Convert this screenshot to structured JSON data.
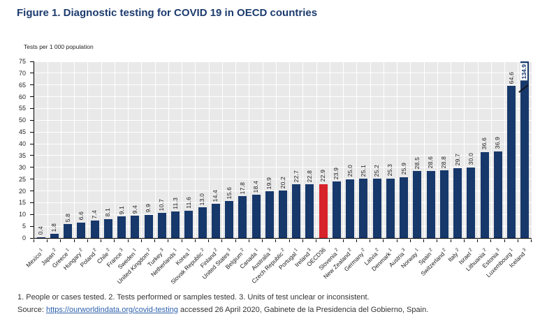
{
  "figure": {
    "title": "Figure 1. Diagnostic testing for COVID 19 in OECD countries",
    "footnote": "1. People or cases tested. 2. Tests performed or samples tested. 3. Units of test unclear or inconsistent.",
    "source": {
      "prefix": "Source: ",
      "link_text": "https://ourworldindata.org/covid-testing",
      "suffix": " accessed 26 April 2020, Gabinete de la Presidencia del Gobierno, Spain."
    }
  },
  "colors": {
    "bar": "#17386B",
    "highlight_bar": "#D7222A",
    "title_text": "#1C3B6E",
    "plot_background": "#E9E9E9",
    "gridline": "#FFFFFF",
    "link": "#2E62AD"
  },
  "chart_data": {
    "type": "bar",
    "title": "Figure 1. Diagnostic testing for COVID 19 in OECD countries",
    "ylabel": "Tests per 1 000 population",
    "xlabel": "",
    "ylim": [
      0,
      75
    ],
    "yticks": [
      0,
      5,
      10,
      15,
      20,
      25,
      30,
      35,
      40,
      45,
      50,
      55,
      60,
      65,
      70,
      75
    ],
    "grid": true,
    "legend": "none",
    "highlight_index": 21,
    "clipped_index": 36,
    "bars": [
      {
        "label": "Mexico",
        "sup": "1",
        "value": 0.4,
        "value_label": "0.4"
      },
      {
        "label": "Japan",
        "sup": "2",
        "value": 1.8,
        "value_label": "1.8"
      },
      {
        "label": "Greece",
        "sup": "1",
        "value": 5.8,
        "value_label": "5.8"
      },
      {
        "label": "Hungary",
        "sup": "2",
        "value": 6.6,
        "value_label": "6.6"
      },
      {
        "label": "Poland",
        "sup": "2",
        "value": 7.4,
        "value_label": "7.4"
      },
      {
        "label": "Chile",
        "sup": "2",
        "value": 8.1,
        "value_label": "8.1"
      },
      {
        "label": "France",
        "sup": "3",
        "value": 9.1,
        "value_label": "9.1"
      },
      {
        "label": "Sweden",
        "sup": "1",
        "value": 9.4,
        "value_label": "9.4"
      },
      {
        "label": "United Kingdom",
        "sup": "2",
        "value": 9.9,
        "value_label": "9.9"
      },
      {
        "label": "Turkey",
        "sup": "3",
        "value": 10.7,
        "value_label": "10.7"
      },
      {
        "label": "Netherlands",
        "sup": "1",
        "value": 11.3,
        "value_label": "11.3"
      },
      {
        "label": "Korea",
        "sup": "1",
        "value": 11.6,
        "value_label": "11.6"
      },
      {
        "label": "Slovak Republic",
        "sup": "2",
        "value": 13.0,
        "value_label": "13.0"
      },
      {
        "label": "Finland",
        "sup": "2",
        "value": 14.4,
        "value_label": "14.4"
      },
      {
        "label": "United States",
        "sup": "3",
        "value": 15.6,
        "value_label": "15.6"
      },
      {
        "label": "Belgium",
        "sup": "2",
        "value": 17.8,
        "value_label": "17.8"
      },
      {
        "label": "Canada",
        "sup": "1",
        "value": 18.4,
        "value_label": "18.4"
      },
      {
        "label": "Australia",
        "sup": "3",
        "value": 19.9,
        "value_label": "19.9"
      },
      {
        "label": "Czech Republic",
        "sup": "2",
        "value": 20.2,
        "value_label": "20.2"
      },
      {
        "label": "Portugal",
        "sup": "1",
        "value": 22.7,
        "value_label": "22.7"
      },
      {
        "label": "Ireland",
        "sup": "3",
        "value": 22.8,
        "value_label": "22.8"
      },
      {
        "label": "OECD36",
        "sup": "",
        "value": 22.9,
        "value_label": "22.9"
      },
      {
        "label": "Slovenia",
        "sup": "2",
        "value": 23.9,
        "value_label": "23.9"
      },
      {
        "label": "New Zealand",
        "sup": "2",
        "value": 25.0,
        "value_label": "25.0"
      },
      {
        "label": "Germany",
        "sup": "2",
        "value": 25.1,
        "value_label": "25.1"
      },
      {
        "label": "Latvia",
        "sup": "2",
        "value": 25.2,
        "value_label": "25.2"
      },
      {
        "label": "Denmark",
        "sup": "1",
        "value": 25.3,
        "value_label": "25.3"
      },
      {
        "label": "Austria",
        "sup": "3",
        "value": 25.9,
        "value_label": "25.9"
      },
      {
        "label": "Norway",
        "sup": "1",
        "value": 28.5,
        "value_label": "28.5"
      },
      {
        "label": "Spain",
        "sup": "2",
        "value": 28.6,
        "value_label": "28.6"
      },
      {
        "label": "Switzerland",
        "sup": "2",
        "value": 28.8,
        "value_label": "28.8"
      },
      {
        "label": "Italy",
        "sup": "2",
        "value": 29.7,
        "value_label": "29.7"
      },
      {
        "label": "Israel",
        "sup": "2",
        "value": 30.0,
        "value_label": "30.0"
      },
      {
        "label": "Lithuania",
        "sup": "2",
        "value": 36.6,
        "value_label": "36.6"
      },
      {
        "label": "Estonia",
        "sup": "3",
        "value": 36.9,
        "value_label": "36.9"
      },
      {
        "label": "Luxembourg",
        "sup": "1",
        "value": 64.6,
        "value_label": "64.6"
      },
      {
        "label": "Iceland",
        "sup": "3",
        "value": 134.9,
        "value_label": "134.9"
      }
    ]
  }
}
